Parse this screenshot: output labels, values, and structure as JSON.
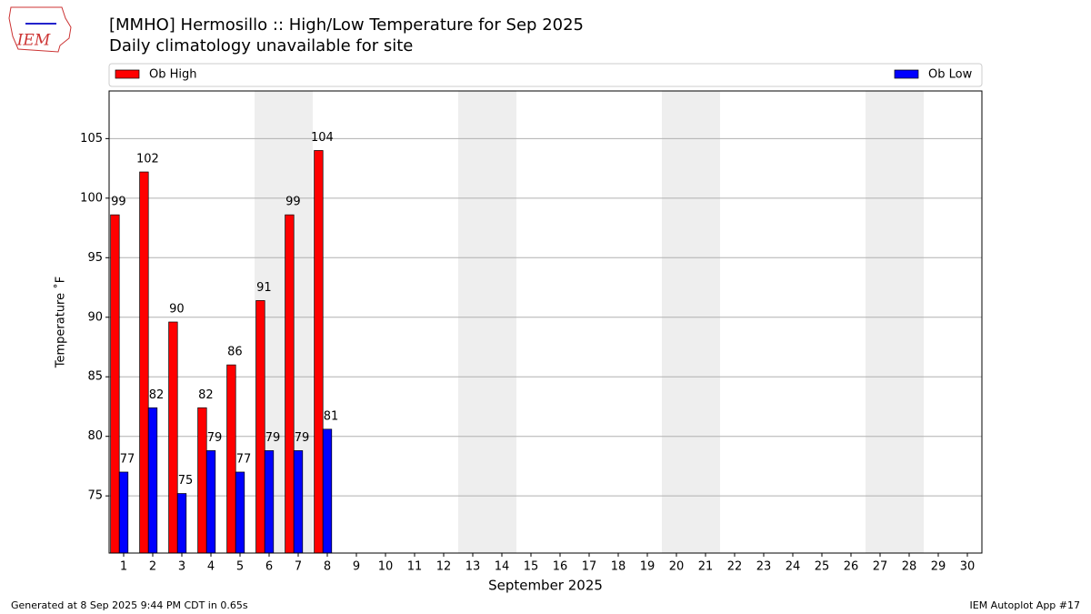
{
  "logo": "IEM",
  "footer_left": "Generated at 8 Sep 2025 9:44 PM CDT in 0.65s",
  "footer_right": "IEM Autoplot App #17",
  "chart_data": {
    "type": "bar",
    "title": "[MMHO] Hermosillo :: High/Low Temperature for Sep 2025",
    "subtitle": "Daily climatology unavailable for site",
    "x_label": "September 2025",
    "y_label": "Temperature ˚F",
    "x": [
      1,
      2,
      3,
      4,
      5,
      6,
      7,
      8
    ],
    "series": [
      {
        "name": "Ob High",
        "color": "#ff0000",
        "values": [
          98.6,
          102.2,
          89.6,
          82.4,
          86.0,
          91.4,
          98.6,
          104.0
        ],
        "value_labels": [
          "99",
          "102",
          "90",
          "82",
          "86",
          "91",
          "99",
          "104"
        ]
      },
      {
        "name": "Ob Low",
        "color": "#0000ff",
        "values": [
          77.0,
          82.4,
          75.2,
          78.8,
          77.0,
          78.8,
          78.8,
          80.6
        ],
        "value_labels": [
          "77",
          "82",
          "75",
          "79",
          "77",
          "79",
          "79",
          "81"
        ]
      }
    ],
    "xlim": [
      0.5,
      30.5
    ],
    "xticks": [
      1,
      2,
      3,
      4,
      5,
      6,
      7,
      8,
      9,
      10,
      11,
      12,
      13,
      14,
      15,
      16,
      17,
      18,
      19,
      20,
      21,
      22,
      23,
      24,
      25,
      26,
      27,
      28,
      29,
      30
    ],
    "ylim": [
      70.2,
      109
    ],
    "yticks": [
      75,
      80,
      85,
      90,
      95,
      100,
      105
    ],
    "grid": true,
    "shaded_days": [
      6,
      7,
      13,
      14,
      20,
      21,
      27,
      28
    ],
    "shade_color": "#eeeeee"
  }
}
